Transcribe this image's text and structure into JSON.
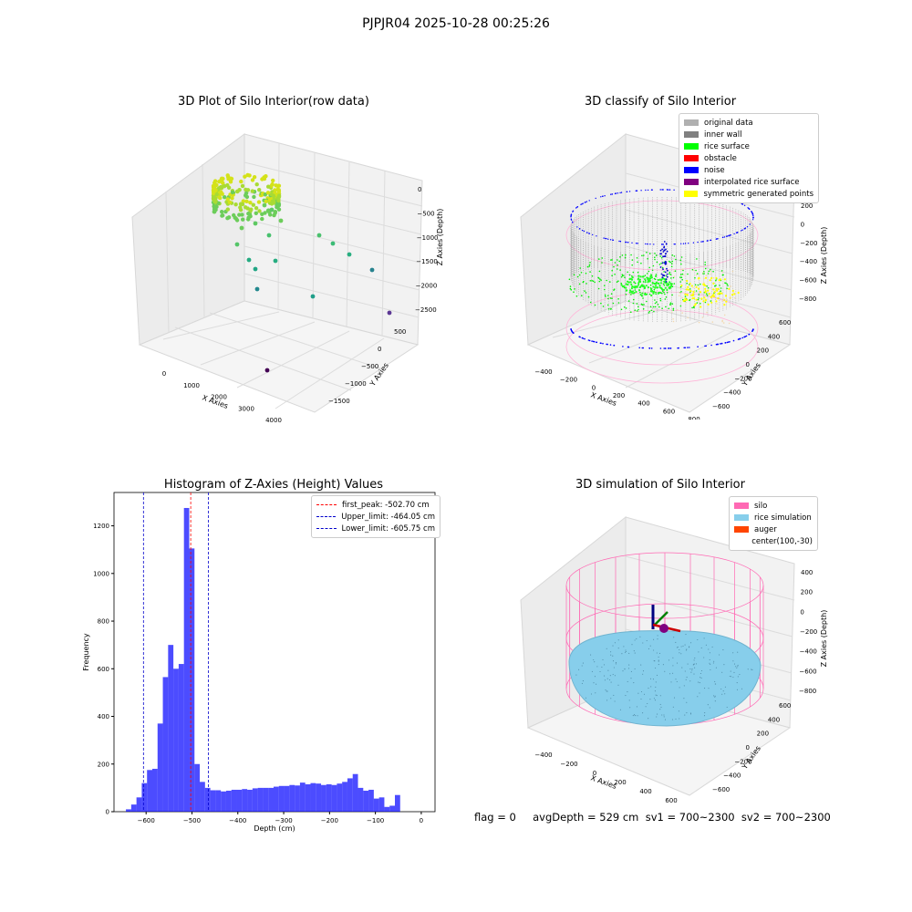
{
  "suptitle": "PJPJR04 2025-10-28 00:25:26",
  "status_text": "flag = 0     avgDepth = 529 cm  sv1 = 700~2300  sv2 = 700~2300",
  "chart_data": [
    {
      "type": "scatter",
      "title": "3D Plot of Silo Interior(row data)",
      "xlabel": "X Axies",
      "ylabel": "Y Axies",
      "zlabel": "Z Axies (Depth)",
      "xticks": [
        "0",
        "1000",
        "2000",
        "3000",
        "4000"
      ],
      "yticks": [
        "500",
        "0",
        "−500",
        "−1000",
        "−1500"
      ],
      "zticks": [
        "0",
        "−500",
        "−1000",
        "−1500",
        "−2000",
        "−2500"
      ],
      "colormap": "viridis"
    },
    {
      "type": "scatter",
      "title": "3D classify of Silo Interior",
      "xlabel": "X Axies",
      "ylabel": "Y Axies",
      "zlabel": "Z Axies (Depth)",
      "xticks": [
        "−400",
        "−200",
        "0",
        "200",
        "400",
        "600",
        "800"
      ],
      "yticks": [
        "600",
        "400",
        "200",
        "0",
        "−200",
        "−400",
        "−600"
      ],
      "zticks": [
        "200",
        "0",
        "−200",
        "−400",
        "−600",
        "−800"
      ],
      "legend_position": "top-right",
      "legend": [
        {
          "label": "original data",
          "color": "#b0b0b0"
        },
        {
          "label": "inner wall",
          "color": "#808080"
        },
        {
          "label": "rice surface",
          "color": "#00ff00"
        },
        {
          "label": "obstacle",
          "color": "#ff0000"
        },
        {
          "label": "noise",
          "color": "#0000ff"
        },
        {
          "label": "interpolated rice surface",
          "color": "#800080"
        },
        {
          "label": "symmetric generated points",
          "color": "#ffff00"
        }
      ]
    },
    {
      "type": "bar",
      "title": "Histogram of Z-Axies (Height) Values",
      "xlabel": "Depth (cm)",
      "ylabel": "Frequency",
      "xlim": [
        -670,
        30
      ],
      "ylim": [
        0,
        1340
      ],
      "xticks": [
        "−600",
        "−500",
        "−400",
        "−300",
        "−200",
        "−100",
        "0"
      ],
      "xtick_values": [
        -600,
        -500,
        -400,
        -300,
        -200,
        -100,
        0
      ],
      "yticks": [
        "0",
        "200",
        "400",
        "600",
        "800",
        "1000",
        "1200"
      ],
      "ytick_values": [
        0,
        200,
        400,
        600,
        800,
        1000,
        1200
      ],
      "bin_start": -644,
      "bin_width": 11.5,
      "values": [
        10,
        30,
        60,
        120,
        175,
        180,
        370,
        565,
        700,
        600,
        620,
        1275,
        1105,
        200,
        125,
        100,
        90,
        90,
        85,
        88,
        92,
        92,
        95,
        92,
        98,
        100,
        100,
        100,
        105,
        108,
        108,
        112,
        110,
        122,
        115,
        120,
        118,
        112,
        115,
        112,
        118,
        125,
        140,
        158,
        100,
        88,
        92,
        55,
        60,
        20,
        25,
        70
      ],
      "bar_color": "#0000ff",
      "legend_position": "top-right",
      "lines": [
        {
          "label": "first_peak: -502.70 cm",
          "x": -502.7,
          "color": "#ff0000"
        },
        {
          "label": "Upper_limit: -464.05 cm",
          "x": -464.05,
          "color": "#0000cc"
        },
        {
          "label": "Lower_limit: -605.75 cm",
          "x": -605.75,
          "color": "#0000cc"
        }
      ]
    },
    {
      "type": "scatter",
      "title": "3D simulation of Silo Interior",
      "xlabel": "X Axies",
      "ylabel": "Y Axies",
      "zlabel": "Z Axies (Depth)",
      "xticks": [
        "−400",
        "−200",
        "0",
        "200",
        "400",
        "600"
      ],
      "yticks": [
        "600",
        "400",
        "200",
        "0",
        "−200",
        "−400",
        "−600"
      ],
      "zticks": [
        "400",
        "200",
        "0",
        "−200",
        "−400",
        "−600",
        "−800"
      ],
      "legend_position": "top-right",
      "legend": [
        {
          "label": "silo",
          "color": "#ff69b4"
        },
        {
          "label": "rice simulation",
          "color": "#87ceeb"
        },
        {
          "label": "auger",
          "color": "#ff4500"
        },
        {
          "label": "center(100,-30)",
          "color": ""
        }
      ]
    }
  ]
}
